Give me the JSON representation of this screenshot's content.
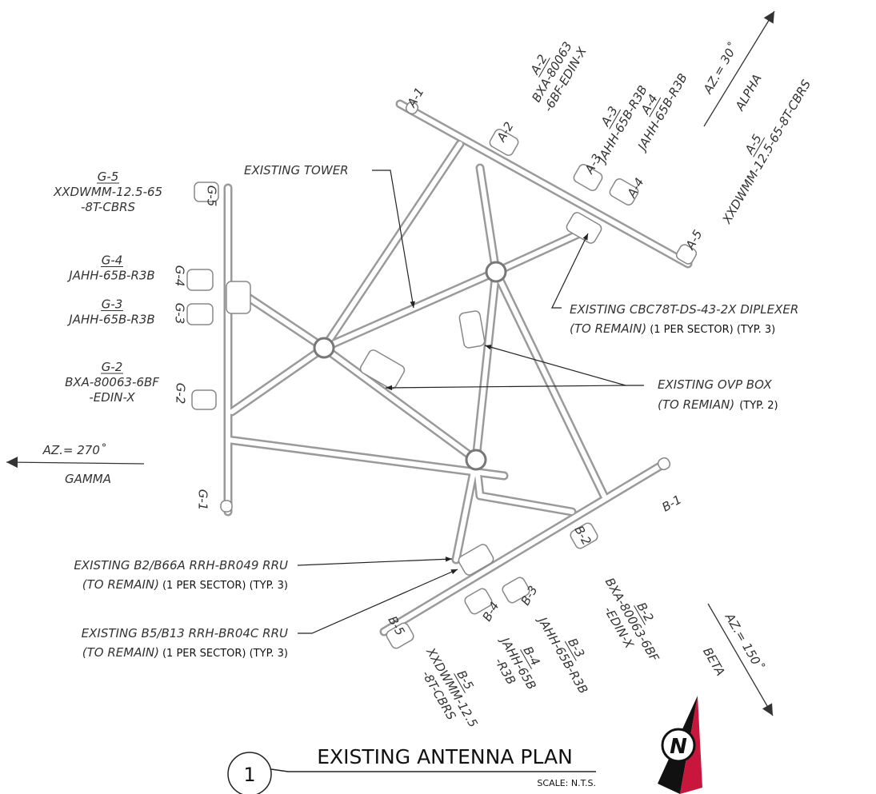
{
  "markers": [
    "A-1",
    "A-2",
    "A-3",
    "A-4",
    "A-5",
    "B-1",
    "B-2",
    "B-3",
    "B-4",
    "B-5",
    "G-1",
    "G-2",
    "G-3",
    "G-4",
    "G-5"
  ],
  "callouts": [
    {
      "lines": [
        "A-2",
        "BXA-80063",
        "-6BF-EDIN-X"
      ]
    },
    {
      "lines": [
        "A-3",
        "JAHH-65B-R3B"
      ]
    },
    {
      "lines": [
        "A-4",
        "JAHH-65B-R3B"
      ]
    },
    {
      "lines": [
        "A-5",
        "XXDWMM-12.5-65-8T-CBRS"
      ]
    },
    {
      "lines": [
        "G-5",
        "XXDWMM-12.5-65",
        "-8T-CBRS"
      ]
    },
    {
      "lines": [
        "G-4",
        "JAHH-65B-R3B"
      ]
    },
    {
      "lines": [
        "G-3",
        "JAHH-65B-R3B"
      ]
    },
    {
      "lines": [
        "G-2",
        "BXA-80063-6BF",
        "-EDIN-X"
      ]
    },
    {
      "lines": [
        "B-2",
        "BXA-80063-6BF",
        "-EDIN-X"
      ]
    },
    {
      "lines": [
        "B-3",
        "JAHH-65B-R3B"
      ]
    },
    {
      "lines": [
        "B-4",
        "JAHH-65B",
        "-R3B"
      ]
    },
    {
      "lines": [
        "B-5",
        "XXDWMM-12.5",
        "-8T-CBRS"
      ]
    }
  ],
  "notes": {
    "tower": "EXISTING TOWER",
    "diplexer": {
      "title": "EXISTING CBC78T-DS-43-2X DIPLEXER",
      "status": "(TO REMAIN)",
      "qty": "(1 PER SECTOR) (TYP. 3)"
    },
    "ovp": {
      "title": "EXISTING OVP BOX",
      "status": "(TO REMIAN)",
      "qty": "(TYP. 2)"
    },
    "rru1": {
      "title": "EXISTING B2/B66A RRH-BR049 RRU",
      "status": "(TO REMAIN)",
      "qty": "(1 PER SECTOR) (TYP. 3)"
    },
    "rru2": {
      "title": "EXISTING B5/B13 RRH-BR04C RRU",
      "status": "(TO REMAIN)",
      "qty": "(1 PER SECTOR) (TYP. 3)"
    }
  },
  "azimuths": [
    {
      "angle": "AZ.= 30˚",
      "sector": "ALPHA"
    },
    {
      "angle": "AZ.= 270˚",
      "sector": "GAMMA"
    },
    {
      "angle": "AZ.= 150˚",
      "sector": "BETA"
    }
  ],
  "title": {
    "number": "1",
    "text": "EXISTING ANTENNA PLAN",
    "scale": "SCALE: N.T.S."
  },
  "north": "N"
}
